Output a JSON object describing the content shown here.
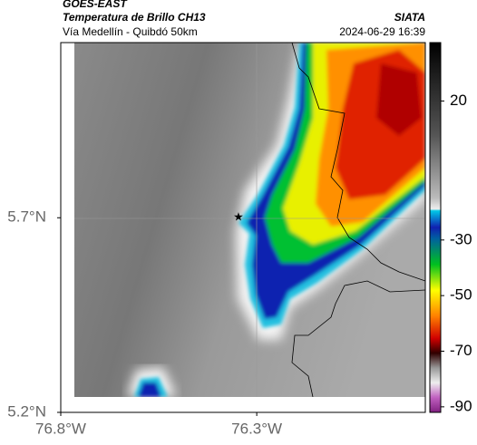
{
  "header": {
    "satellite": "GOES-EAST",
    "product": "Temperatura de Brillo CH13",
    "region": "Vía Medellín - Quibdó 50km",
    "source": "SIATA",
    "timestamp": "2024-06-29 16:39"
  },
  "map": {
    "xlim": [
      -76.8,
      -75.87
    ],
    "ylim": [
      5.2,
      6.15
    ],
    "xticks": [
      {
        "value": -76.8,
        "label": "76.8°W"
      },
      {
        "value": -76.3,
        "label": "76.3°W"
      }
    ],
    "yticks": [
      {
        "value": 5.7,
        "label": "5.7°N"
      },
      {
        "value": 5.2,
        "label": "5.2°N"
      }
    ]
  },
  "colorbar": {
    "range": [
      -92,
      41
    ],
    "ticks": [
      20,
      -30,
      -50,
      -70,
      -90
    ]
  }
}
